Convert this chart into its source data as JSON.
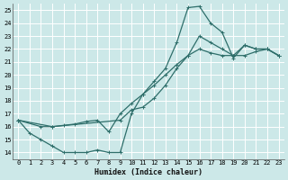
{
  "xlabel": "Humidex (Indice chaleur)",
  "bg_color": "#cce8e8",
  "grid_color": "#ffffff",
  "line_color": "#2e6e6a",
  "xlim": [
    -0.5,
    23.5
  ],
  "ylim": [
    13.5,
    25.5
  ],
  "xticks": [
    0,
    1,
    2,
    3,
    4,
    5,
    6,
    7,
    8,
    9,
    10,
    11,
    12,
    13,
    14,
    15,
    16,
    17,
    18,
    19,
    20,
    21,
    22,
    23
  ],
  "yticks": [
    14,
    15,
    16,
    17,
    18,
    19,
    20,
    21,
    22,
    23,
    24,
    25
  ],
  "line1_x": [
    0,
    1,
    2,
    3,
    4,
    5,
    6,
    7,
    8,
    9,
    10,
    11,
    12,
    13,
    14,
    15,
    16,
    17,
    18,
    19,
    20,
    21,
    22,
    23
  ],
  "line1_y": [
    16.5,
    15.5,
    15.0,
    14.5,
    14.0,
    14.0,
    14.0,
    14.2,
    14.0,
    14.0,
    17.0,
    18.5,
    19.5,
    20.5,
    22.5,
    25.2,
    25.3,
    24.0,
    23.3,
    21.3,
    22.3,
    22.0,
    22.0,
    21.5
  ],
  "line2_x": [
    0,
    3,
    4,
    5,
    6,
    7,
    8,
    9,
    10,
    11,
    12,
    13,
    14,
    15,
    16,
    17,
    18,
    19,
    20,
    21,
    22,
    23
  ],
  "line2_y": [
    16.5,
    16.0,
    16.1,
    16.2,
    16.4,
    16.5,
    15.6,
    17.0,
    17.8,
    18.5,
    19.2,
    20.0,
    20.8,
    21.5,
    22.0,
    21.7,
    21.5,
    21.5,
    21.5,
    21.8,
    22.0,
    21.5
  ],
  "line3_x": [
    0,
    2,
    3,
    9,
    10,
    11,
    12,
    13,
    14,
    15,
    16,
    17,
    18,
    19,
    20,
    21,
    22,
    23
  ],
  "line3_y": [
    16.5,
    16.0,
    16.0,
    16.5,
    17.3,
    17.5,
    18.2,
    19.2,
    20.5,
    21.5,
    23.0,
    22.5,
    22.0,
    21.5,
    22.3,
    22.0,
    22.0,
    21.5
  ]
}
